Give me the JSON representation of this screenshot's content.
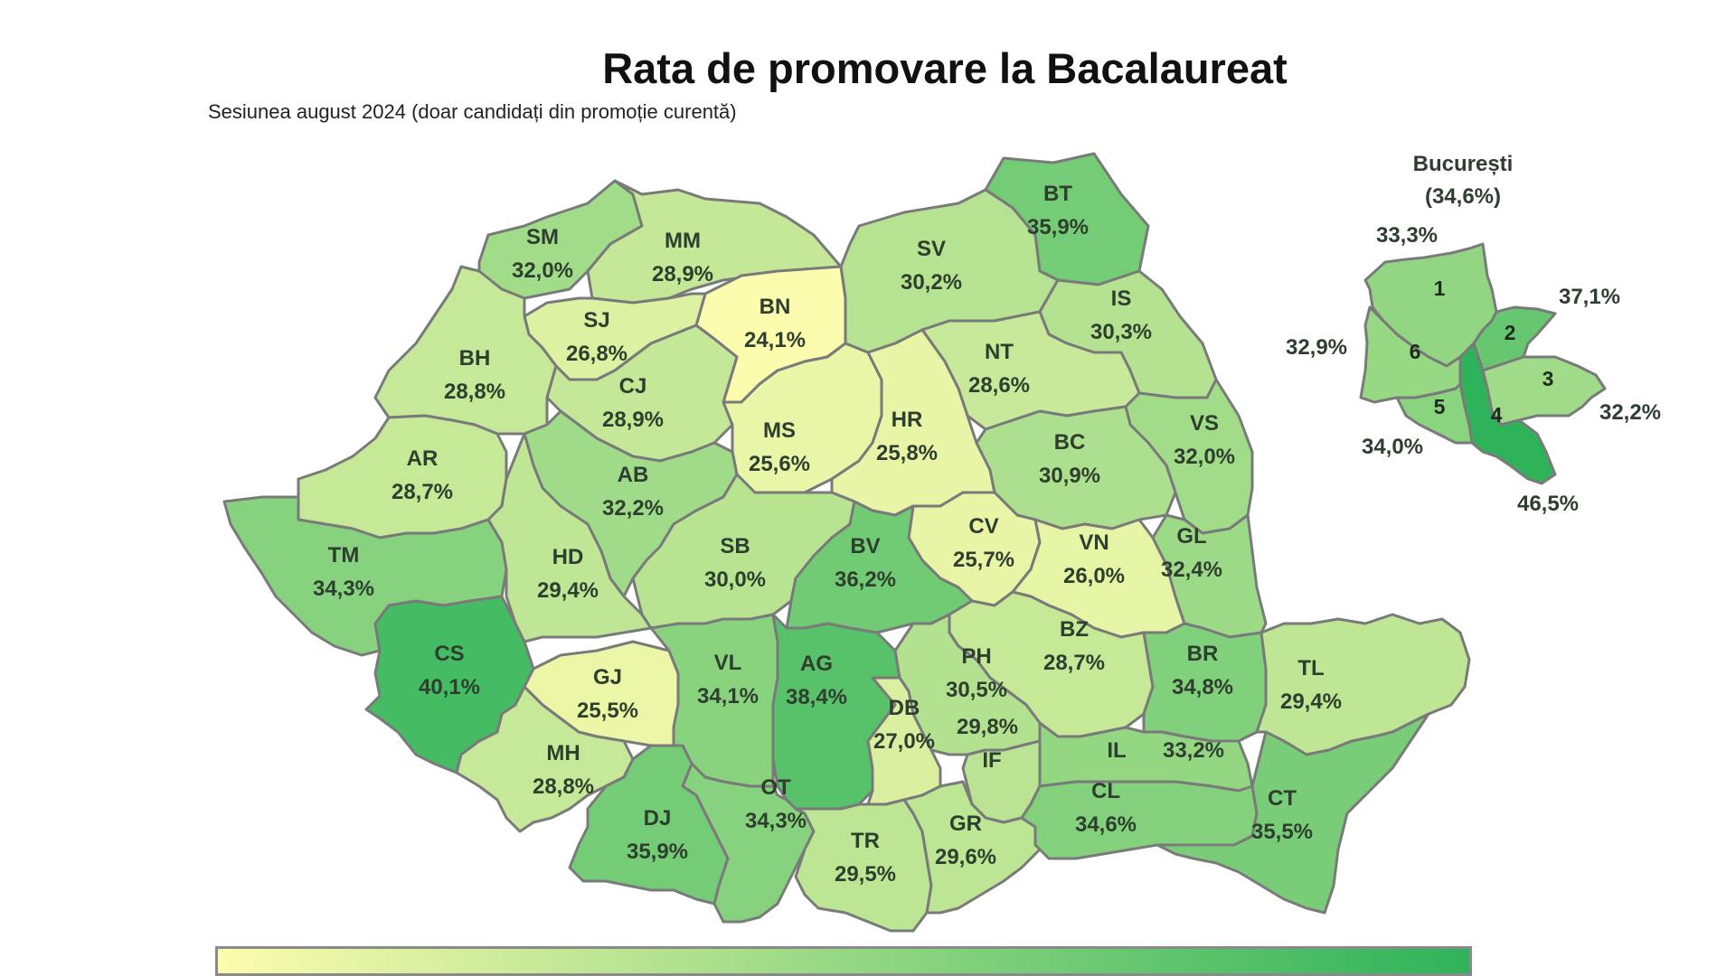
{
  "title": "Rata de promovare la Bacalaureat",
  "subtitle": "Sesiunea august 2024 (doar candidați din promoție curentă)",
  "scale": {
    "min_color": "#fcfcae",
    "max_color": "#2fb35a"
  },
  "counties": [
    {
      "code": "SM",
      "value": "32,0%",
      "rate": 32.0
    },
    {
      "code": "MM",
      "value": "28,9%",
      "rate": 28.9
    },
    {
      "code": "BT",
      "value": "35,9%",
      "rate": 35.9
    },
    {
      "code": "SV",
      "value": "30,2%",
      "rate": 30.2
    },
    {
      "code": "BN",
      "value": "24,1%",
      "rate": 24.1
    },
    {
      "code": "SJ",
      "value": "26,8%",
      "rate": 26.8
    },
    {
      "code": "IS",
      "value": "30,3%",
      "rate": 30.3
    },
    {
      "code": "BH",
      "value": "28,8%",
      "rate": 28.8
    },
    {
      "code": "CJ",
      "value": "28,9%",
      "rate": 28.9
    },
    {
      "code": "NT",
      "value": "28,6%",
      "rate": 28.6
    },
    {
      "code": "MS",
      "value": "25,6%",
      "rate": 25.6
    },
    {
      "code": "HR",
      "value": "25,8%",
      "rate": 25.8
    },
    {
      "code": "VS",
      "value": "32,0%",
      "rate": 32.0
    },
    {
      "code": "AR",
      "value": "28,7%",
      "rate": 28.7
    },
    {
      "code": "BC",
      "value": "30,9%",
      "rate": 30.9
    },
    {
      "code": "AB",
      "value": "32,2%",
      "rate": 32.2
    },
    {
      "code": "CV",
      "value": "25,7%",
      "rate": 25.7
    },
    {
      "code": "VN",
      "value": "26,0%",
      "rate": 26.0
    },
    {
      "code": "GL",
      "value": "32,4%",
      "rate": 32.4
    },
    {
      "code": "TM",
      "value": "34,3%",
      "rate": 34.3
    },
    {
      "code": "HD",
      "value": "29,4%",
      "rate": 29.4
    },
    {
      "code": "SB",
      "value": "30,0%",
      "rate": 30.0
    },
    {
      "code": "BV",
      "value": "36,2%",
      "rate": 36.2
    },
    {
      "code": "BZ",
      "value": "28,7%",
      "rate": 28.7
    },
    {
      "code": "CS",
      "value": "40,1%",
      "rate": 40.1
    },
    {
      "code": "GJ",
      "value": "25,5%",
      "rate": 25.5
    },
    {
      "code": "VL",
      "value": "34,1%",
      "rate": 34.1
    },
    {
      "code": "AG",
      "value": "38,4%",
      "rate": 38.4
    },
    {
      "code": "PH",
      "value": "30,5%",
      "rate": 30.5
    },
    {
      "code": "BR",
      "value": "34,8%",
      "rate": 34.8
    },
    {
      "code": "TL",
      "value": "29,4%",
      "rate": 29.4
    },
    {
      "code": "DB",
      "value": "27,0%",
      "rate": 27.0
    },
    {
      "code": "MH",
      "value": "28,8%",
      "rate": 28.8
    },
    {
      "code": "IF",
      "value": "29,8%",
      "rate": 29.8
    },
    {
      "code": "IL",
      "value": "33,2%",
      "rate": 33.2
    },
    {
      "code": "OT",
      "value": "34,3%",
      "rate": 34.3
    },
    {
      "code": "DJ",
      "value": "35,9%",
      "rate": 35.9
    },
    {
      "code": "TR",
      "value": "29,5%",
      "rate": 29.5
    },
    {
      "code": "GR",
      "value": "29,6%",
      "rate": 29.6
    },
    {
      "code": "CL",
      "value": "34,6%",
      "rate": 34.6
    },
    {
      "code": "CT",
      "value": "35,5%",
      "rate": 35.5
    }
  ],
  "bucuresti": {
    "name": "București",
    "value": "(34,6%)",
    "rate": 34.6,
    "sectors": [
      {
        "number": "1",
        "value": "33,3%",
        "rate": 33.3
      },
      {
        "number": "2",
        "value": "37,1%",
        "rate": 37.1
      },
      {
        "number": "3",
        "value": "32,2%",
        "rate": 32.2
      },
      {
        "number": "4",
        "value": "46,5%",
        "rate": 46.5
      },
      {
        "number": "5",
        "value": "34,0%",
        "rate": 34.0
      },
      {
        "number": "6",
        "value": "32,9%",
        "rate": 32.9
      }
    ]
  }
}
